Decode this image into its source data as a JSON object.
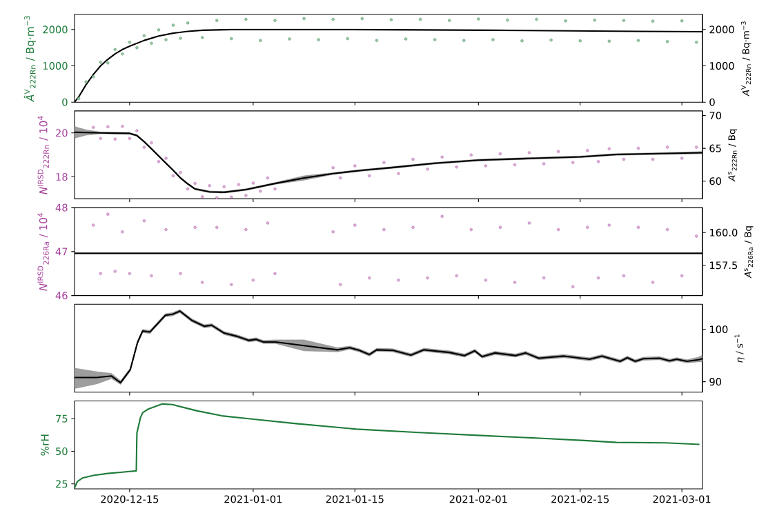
{
  "chart_data": [
    {
      "type": "scatter",
      "ylabel": "*Â*$^{V}$$_{222Rn}$ / Bq·m$^{−3}$",
      "y2label": "*A*$^{V}$$_{222Rn}$ / Bq·m$^{−3}$",
      "marker": "circle",
      "tick_labels": "y",
      "xlim": [
        "2020-12-07T10:00",
        "2021-03-03T20:00"
      ],
      "xticks": [
        "2020-12-15",
        "2021-01-01",
        "2021-01-15",
        "2021-02-01",
        "2021-02-15",
        "2021-03-01"
      ],
      "ylim": [
        0,
        2420
      ],
      "yticks": [
        0,
        1000,
        2000
      ],
      "y2lim": [
        0,
        2420
      ],
      "y2ticks": [
        0,
        1000,
        2000
      ],
      "series": [
        {
          "color": "#1e7b3a",
          "x": [
            "2020-12-08",
            "2020-12-09",
            "2020-12-10",
            "2020-12-11",
            "2020-12-12",
            "2020-12-13",
            "2020-12-14",
            "2020-12-15",
            "2020-12-16",
            "2020-12-17",
            "2020-12-18",
            "2020-12-19",
            "2020-12-20",
            "2020-12-21",
            "2020-12-22",
            "2020-12-23",
            "2020-12-25",
            "2020-12-27",
            "2020-12-29",
            "2020-12-31",
            "2021-01-02",
            "2021-01-04",
            "2021-01-06",
            "2021-01-08",
            "2021-01-10",
            "2021-01-12",
            "2021-01-14",
            "2021-01-16",
            "2021-01-18",
            "2021-01-20",
            "2021-01-22",
            "2021-01-24",
            "2021-01-26",
            "2021-01-28",
            "2021-01-30",
            "2021-02-01",
            "2021-02-03",
            "2021-02-05",
            "2021-02-07",
            "2021-02-09",
            "2021-02-11",
            "2021-02-13",
            "2021-02-15",
            "2021-02-17",
            "2021-02-19",
            "2021-02-21",
            "2021-02-23",
            "2021-02-25",
            "2021-02-27",
            "2021-03-01",
            "2021-03-03"
          ],
          "values": [
            100,
            560,
            700,
            1100,
            1080,
            1450,
            1330,
            1650,
            1500,
            1830,
            1620,
            1990,
            1720,
            2120,
            1760,
            2180,
            1780,
            2250,
            1750,
            2280,
            1700,
            2250,
            1740,
            2300,
            1720,
            2280,
            1750,
            2300,
            1700,
            2270,
            1740,
            2280,
            1720,
            2250,
            1700,
            2290,
            1720,
            2260,
            1690,
            2280,
            1710,
            2240,
            1690,
            2260,
            1680,
            2250,
            1700,
            2230,
            1670,
            2240,
            1650
          ]
        },
        {
          "type": "line",
          "marker": "none",
          "color": "#000000",
          "x": [
            "2020-12-07T10:00",
            "2020-12-08",
            "2020-12-09",
            "2020-12-10",
            "2020-12-11",
            "2020-12-12",
            "2020-12-13",
            "2020-12-14",
            "2020-12-15",
            "2020-12-17",
            "2020-12-19",
            "2020-12-21",
            "2020-12-23",
            "2020-12-25",
            "2020-12-29",
            "2021-01-14",
            "2021-02-03",
            "2021-02-23",
            "2021-03-03T20:00"
          ],
          "values": [
            0,
            150,
            480,
            760,
            1000,
            1180,
            1330,
            1450,
            1540,
            1700,
            1820,
            1900,
            1950,
            1980,
            2000,
            2000,
            1980,
            1950,
            1940
          ]
        }
      ]
    },
    {
      "type": "scatter",
      "ylabel": "*N*$^{IRSD}$$_{222Rn}$ / 10$^{4}$",
      "y2label": "*A*$^{s}$$_{222Rn}$ / Bq",
      "marker": "circle",
      "tick_labels": "y",
      "xlim": [
        "2020-12-07T10:00",
        "2021-03-03T20:00"
      ],
      "xticks": [
        "2020-12-15",
        "2021-01-01",
        "2021-01-15",
        "2021-02-01",
        "2021-02-15",
        "2021-03-01"
      ],
      "ylim": [
        17,
        21
      ],
      "yticks": [
        18,
        20
      ],
      "y2lim": [
        57.3,
        70.7
      ],
      "y2ticks": [
        60,
        65,
        70
      ],
      "series": [
        {
          "color": "#a8449e",
          "x": [
            "2020-12-10",
            "2020-12-11",
            "2020-12-12",
            "2020-12-13",
            "2020-12-14",
            "2020-12-15",
            "2020-12-16",
            "2020-12-17",
            "2020-12-18",
            "2020-12-19",
            "2020-12-20",
            "2020-12-21",
            "2020-12-22",
            "2020-12-23",
            "2020-12-24",
            "2020-12-25",
            "2020-12-26",
            "2020-12-27",
            "2020-12-28",
            "2020-12-29",
            "2020-12-30",
            "2020-12-31",
            "2021-01-01",
            "2021-01-02",
            "2021-01-03",
            "2021-01-04",
            "2021-01-12",
            "2021-01-13",
            "2021-01-15",
            "2021-01-17",
            "2021-01-19",
            "2021-01-21",
            "2021-01-23",
            "2021-01-25",
            "2021-01-27",
            "2021-01-29",
            "2021-01-31",
            "2021-02-02",
            "2021-02-04",
            "2021-02-06",
            "2021-02-08",
            "2021-02-10",
            "2021-02-12",
            "2021-02-14",
            "2021-02-16",
            "2021-02-17T12:00",
            "2021-02-19",
            "2021-02-21",
            "2021-02-23",
            "2021-02-25",
            "2021-02-27",
            "2021-03-01",
            "2021-03-03"
          ],
          "values": [
            20.25,
            19.75,
            20.28,
            19.72,
            20.3,
            19.75,
            20.1,
            19.35,
            19.55,
            18.7,
            18.85,
            18.05,
            18.2,
            17.45,
            17.7,
            17.1,
            17.6,
            17.05,
            17.55,
            17.08,
            17.65,
            17.15,
            17.72,
            17.35,
            17.95,
            17.45,
            18.42,
            17.95,
            18.5,
            18.05,
            18.65,
            18.15,
            18.8,
            18.35,
            18.9,
            18.45,
            19.0,
            18.5,
            19.05,
            18.55,
            19.1,
            18.6,
            19.15,
            18.65,
            19.2,
            18.7,
            19.28,
            18.8,
            19.3,
            18.8,
            19.35,
            18.85,
            19.35
          ]
        },
        {
          "type": "line",
          "marker": "none",
          "color": "#000000",
          "x": [
            "2020-12-07T10:00",
            "2020-12-09",
            "2020-12-11",
            "2020-12-13",
            "2020-12-15",
            "2020-12-16",
            "2020-12-17",
            "2020-12-18",
            "2020-12-19",
            "2020-12-20",
            "2020-12-21",
            "2020-12-22",
            "2020-12-23",
            "2020-12-24",
            "2020-12-26",
            "2020-12-28",
            "2020-12-31",
            "2021-01-04",
            "2021-01-08",
            "2021-01-12",
            "2021-01-16",
            "2021-01-20",
            "2021-01-26",
            "2021-02-01",
            "2021-02-08",
            "2021-02-15",
            "2021-02-20",
            "2021-02-26",
            "2021-03-03T20:00"
          ],
          "values": [
            20.03,
            20.02,
            20.0,
            19.99,
            19.98,
            19.88,
            19.6,
            19.28,
            18.95,
            18.62,
            18.3,
            17.95,
            17.68,
            17.45,
            17.32,
            17.3,
            17.42,
            17.7,
            17.95,
            18.15,
            18.3,
            18.42,
            18.62,
            18.76,
            18.84,
            18.91,
            19.02,
            19.06,
            19.1
          ],
          "lower": [
            19.76,
            19.9,
            19.96,
            19.95,
            19.94,
            19.84,
            19.56,
            19.24,
            18.91,
            18.58,
            18.26,
            17.91,
            17.64,
            17.41,
            17.28,
            17.26,
            17.38,
            17.66,
            17.85,
            18.11,
            18.26,
            18.38,
            18.58,
            18.72,
            18.8,
            18.87,
            18.98,
            19.02,
            19.05
          ],
          "upper": [
            20.29,
            20.14,
            20.04,
            20.03,
            20.02,
            19.92,
            19.64,
            19.32,
            18.99,
            18.66,
            18.34,
            17.99,
            17.72,
            17.49,
            17.36,
            17.34,
            17.46,
            17.74,
            18.05,
            18.19,
            18.34,
            18.46,
            18.66,
            18.8,
            18.88,
            18.95,
            19.06,
            19.1,
            19.15
          ]
        }
      ]
    },
    {
      "type": "scatter",
      "ylabel": "*N*$^{IRSD}$$_{226Ra}$ / 10$^{4}$",
      "y2label": "*A*$^{s}$$_{226Ra}$ / Bq",
      "marker": "circle",
      "tick_labels": "y",
      "xlim": [
        "2020-12-07T10:00",
        "2021-03-03T20:00"
      ],
      "xticks": [
        "2020-12-15",
        "2021-01-01",
        "2021-01-15",
        "2021-02-01",
        "2021-02-15",
        "2021-03-01"
      ],
      "ylim": [
        46,
        48
      ],
      "yticks": [
        46,
        47,
        48
      ],
      "y2lim": [
        155.2,
        161.9
      ],
      "y2ticks": [
        157.5,
        {
          "value": 160,
          "label": "160.0"
        }
      ],
      "series": [
        {
          "color": "#a8449e",
          "x": [
            "2020-12-10",
            "2020-12-11",
            "2020-12-12",
            "2020-12-13",
            "2020-12-14",
            "2020-12-15",
            "2020-12-17",
            "2020-12-18",
            "2020-12-20",
            "2020-12-22",
            "2020-12-24",
            "2020-12-25",
            "2020-12-27",
            "2020-12-29",
            "2020-12-31",
            "2021-01-01",
            "2021-01-03",
            "2021-01-04",
            "2021-01-12",
            "2021-01-13",
            "2021-01-15",
            "2021-01-17",
            "2021-01-19",
            "2021-01-21",
            "2021-01-23",
            "2021-01-25",
            "2021-01-27",
            "2021-01-29",
            "2021-01-31",
            "2021-02-02",
            "2021-02-04",
            "2021-02-06",
            "2021-02-08",
            "2021-02-10",
            "2021-02-12",
            "2021-02-14",
            "2021-02-16",
            "2021-02-17T12:00",
            "2021-02-19",
            "2021-02-21",
            "2021-02-23",
            "2021-02-25",
            "2021-02-27",
            "2021-03-01",
            "2021-03-03"
          ],
          "values": [
            47.6,
            46.5,
            47.85,
            46.55,
            47.45,
            46.5,
            47.7,
            46.45,
            47.5,
            46.5,
            47.55,
            46.3,
            47.55,
            46.25,
            47.5,
            46.35,
            47.65,
            46.5,
            47.45,
            46.25,
            47.6,
            46.4,
            47.5,
            46.35,
            47.55,
            46.4,
            47.8,
            46.45,
            47.5,
            46.35,
            47.55,
            46.3,
            47.65,
            46.4,
            47.5,
            46.2,
            47.55,
            46.4,
            47.6,
            46.45,
            47.55,
            46.3,
            47.5,
            46.45,
            47.35
          ]
        },
        {
          "type": "line",
          "marker": "none",
          "color": "#000000",
          "x": [
            "2020-12-07T10:00",
            "2021-03-03T20:00"
          ],
          "values": [
            46.96,
            46.96
          ]
        }
      ]
    },
    {
      "type": "line",
      "y2label": "*η* / s$^{−1}$",
      "tick_labels": "y",
      "xlim": [
        "2020-12-07T10:00",
        "2021-03-03T20:00"
      ],
      "xticks": [
        "2020-12-15",
        "2021-01-01",
        "2021-01-15",
        "2021-02-01",
        "2021-02-15",
        "2021-03-01"
      ],
      "y2lim": [
        88,
        104.8
      ],
      "y2ticks": [
        90,
        100
      ],
      "series": [
        {
          "axis": "y2",
          "color": "#000000",
          "x": [
            "2020-12-07T10:00",
            "2020-12-10T12:00",
            "2020-12-12T12:00",
            "2020-12-13T18:00",
            "2020-12-15T02:00",
            "2020-12-16T02:00",
            "2020-12-16T19:00",
            "2020-12-17T19:00",
            "2020-12-19T22:00",
            "2020-12-20T22:00",
            "2020-12-21T22:00",
            "2020-12-23T14:00",
            "2020-12-25T07:00",
            "2020-12-26T07:00",
            "2020-12-28",
            "2020-12-29T17:00",
            "2020-12-31T10:00",
            "2021-01-01T10:00",
            "2021-01-02T10:00",
            "2021-01-04T02:00",
            "2021-01-08",
            "2021-01-12T14:00",
            "2021-01-14T07:00",
            "2021-01-15T14:00",
            "2021-01-17",
            "2021-01-18",
            "2021-01-20T05:00",
            "2021-01-22T17:00",
            "2021-01-24T12:00",
            "2021-01-28",
            "2021-01-30T02:00",
            "2021-01-31T12:00",
            "2021-02-01T12:00",
            "2021-02-03T07:00",
            "2021-02-06T02:00",
            "2021-02-07T12:00",
            "2021-02-09T07:00",
            "2021-02-12T19:00",
            "2021-02-16T07:00",
            "2021-02-18",
            "2021-02-20T12:00",
            "2021-02-21T12:00",
            "2021-02-22T14:00",
            "2021-02-23T17:00",
            "2021-02-25T22:00",
            "2021-02-27T07:00",
            "2021-02-28T07:00",
            "2021-03-01T17:00",
            "2021-03-03T07:00",
            "2021-03-03T20:00"
          ],
          "values": [
            90.8,
            90.8,
            91.1,
            89.8,
            92.3,
            97.5,
            99.7,
            99.5,
            102.7,
            102.9,
            103.5,
            101.7,
            100.6,
            100.8,
            99.3,
            98.7,
            97.9,
            98.1,
            97.6,
            97.6,
            96.9,
            96.1,
            96.5,
            96.0,
            95.2,
            96.1,
            96.0,
            95.1,
            96.1,
            95.6,
            95.0,
            95.9,
            94.8,
            95.5,
            95.0,
            95.5,
            94.5,
            94.9,
            94.3,
            94.9,
            93.9,
            94.6,
            93.9,
            94.4,
            94.5,
            94.0,
            94.3,
            93.9,
            94.2,
            94.4
          ],
          "lower": [
            88.7,
            89.6,
            90.6,
            89.5,
            92.0,
            97.2,
            99.4,
            99.2,
            102.4,
            102.6,
            103.2,
            101.4,
            100.3,
            100.5,
            99.0,
            98.4,
            97.6,
            97.8,
            97.3,
            97.3,
            95.9,
            95.7,
            96.2,
            95.7,
            94.9,
            95.8,
            95.7,
            94.8,
            95.8,
            95.3,
            94.7,
            95.6,
            94.5,
            95.2,
            94.7,
            95.2,
            94.2,
            94.6,
            94.0,
            94.6,
            93.6,
            94.3,
            93.6,
            94.1,
            94.2,
            93.7,
            94.0,
            93.6,
            93.8,
            93.8
          ],
          "upper": [
            92.6,
            91.9,
            91.6,
            90.2,
            92.6,
            97.8,
            100.0,
            99.8,
            103.0,
            103.2,
            103.8,
            102.0,
            100.9,
            101.1,
            99.6,
            99.0,
            98.2,
            98.4,
            97.9,
            98.0,
            98.0,
            96.5,
            96.8,
            96.3,
            95.5,
            96.4,
            96.3,
            95.4,
            96.4,
            95.9,
            95.3,
            96.2,
            95.1,
            95.8,
            95.3,
            95.8,
            94.8,
            95.2,
            94.6,
            95.2,
            94.2,
            94.9,
            94.2,
            94.7,
            94.8,
            94.3,
            94.6,
            94.2,
            94.7,
            95.1
          ]
        }
      ]
    },
    {
      "type": "line",
      "ylabel": "%rH",
      "xlim": [
        "2020-12-07T10:00",
        "2021-03-03T20:00"
      ],
      "xticks": [
        "2020-12-15",
        "2021-01-01",
        "2021-01-15",
        "2021-02-01",
        "2021-02-15",
        "2021-03-01"
      ],
      "ylim": [
        21.2,
        88.6
      ],
      "yticks": [
        25,
        50,
        75
      ],
      "series": [
        {
          "color": "#1e7b3a",
          "x": [
            "2020-12-07T10:00",
            "2020-12-07T20:00",
            "2020-12-08T12:00",
            "2020-12-10",
            "2020-12-12",
            "2020-12-14",
            "2020-12-15T22:00",
            "2020-12-16T00:00",
            "2020-12-16T12:00",
            "2020-12-16T19:00",
            "2020-12-17T12:00",
            "2020-12-19T12:00",
            "2020-12-20T22:00",
            "2020-12-24T07:00",
            "2020-12-27T17:00",
            "2021-01-01T02:00",
            "2021-01-06T22:00",
            "2021-01-15T05:00",
            "2021-01-23T19:00",
            "2021-02-01T10:00",
            "2021-02-09T19:00",
            "2021-02-15T14:00",
            "2021-02-20",
            "2021-02-26T17:00",
            "2021-03-03T10:00"
          ],
          "values": [
            22,
            27,
            29.5,
            31.5,
            33,
            34,
            35,
            64,
            76,
            79.5,
            82.2,
            86.3,
            85.8,
            81.0,
            77.2,
            74.6,
            71.2,
            67.0,
            64.4,
            62.1,
            59.9,
            58.3,
            56.8,
            56.5,
            55.3
          ]
        }
      ]
    }
  ]
}
